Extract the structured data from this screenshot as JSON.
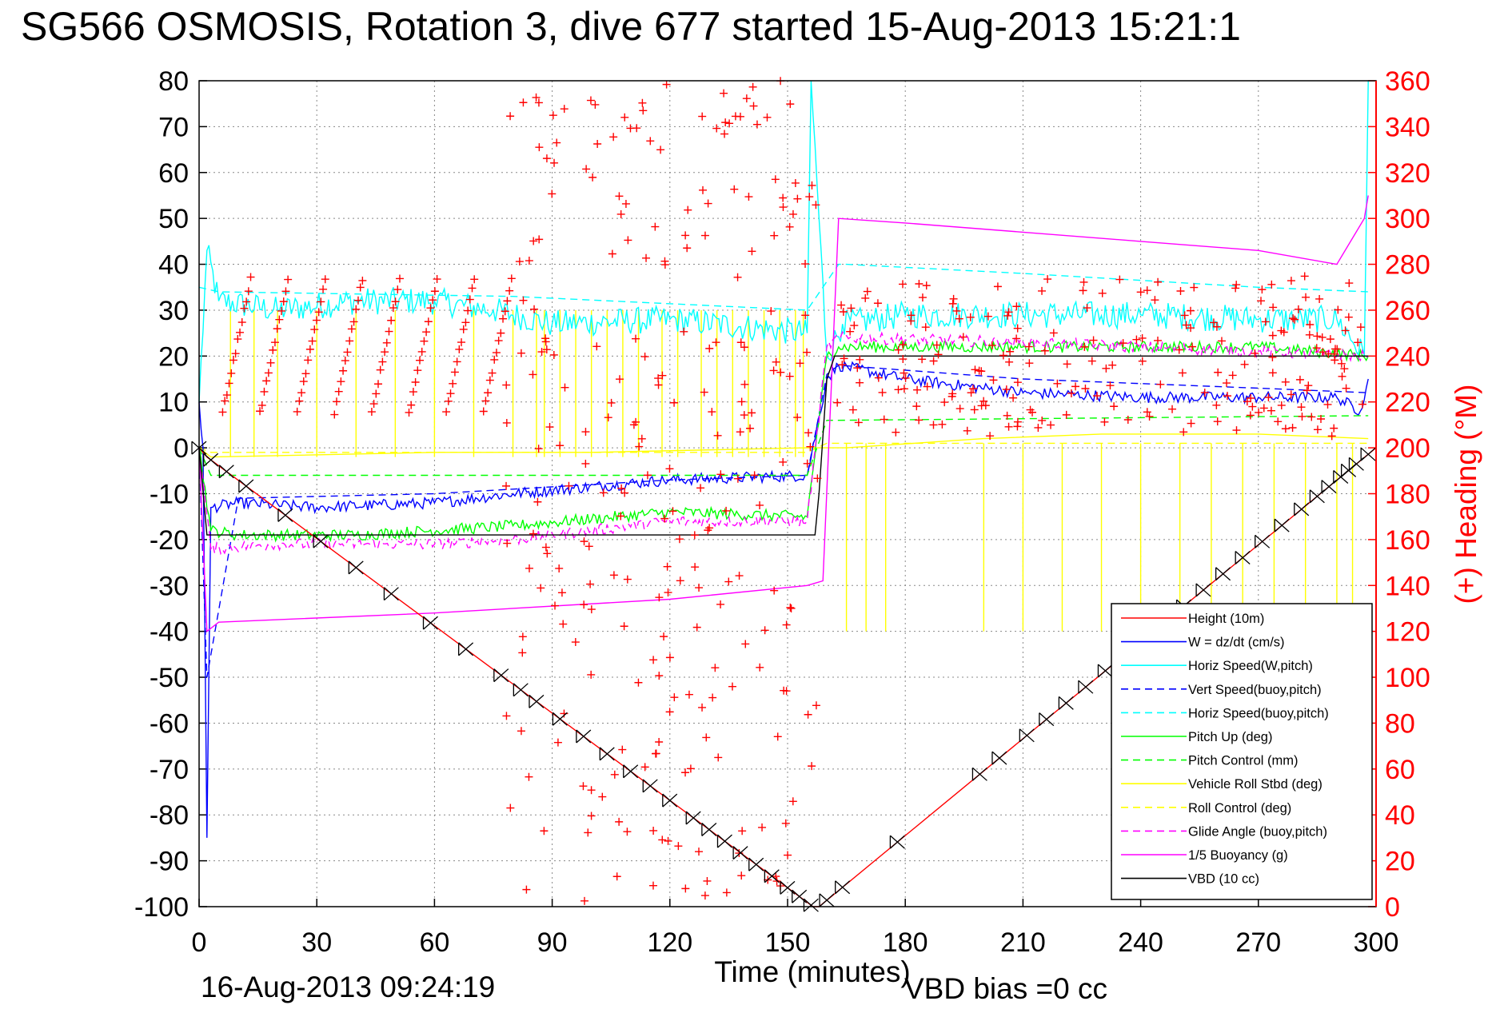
{
  "chart_data": {
    "type": "line",
    "title": "SG566 OSMOSIS, Rotation 3, dive 677 started 15-Aug-2013 15:21:1",
    "xlabel": "Time (minutes)",
    "ylabel": "",
    "y2label": "(+) Heading (°M)",
    "xlim": [
      0,
      300
    ],
    "ylim": [
      -100,
      80
    ],
    "y2lim": [
      0,
      360
    ],
    "grid": true,
    "legend_position": "bottom-right",
    "x_ticks": [
      "0",
      "30",
      "60",
      "90",
      "120",
      "150",
      "180",
      "210",
      "240",
      "270",
      "300"
    ],
    "y_ticks": [
      "80",
      "70",
      "60",
      "50",
      "40",
      "30",
      "20",
      "10",
      "0",
      "-10",
      "-20",
      "-30",
      "-40",
      "-50",
      "-60",
      "-70",
      "-80",
      "-90",
      "-100"
    ],
    "y2_ticks": [
      "360",
      "340",
      "320",
      "300",
      "280",
      "260",
      "240",
      "220",
      "200",
      "180",
      "160",
      "140",
      "120",
      "100",
      "80",
      "60",
      "40",
      "20",
      "0"
    ],
    "footer_date": "16-Aug-2013 09:24:19",
    "vbd_bias": "VBD bias =0 cc",
    "series": [
      {
        "name": "Height (10m)",
        "color": "#ff0000",
        "dash": false,
        "x": [
          0,
          2,
          156.5,
          158,
          300
        ],
        "y": [
          0,
          -2,
          -100,
          -100,
          0
        ]
      },
      {
        "name": "W = dz/dt (cm/s)",
        "color": "#0000ff",
        "dash": false,
        "x": [
          0,
          1,
          2,
          3,
          10,
          30,
          60,
          80,
          120,
          155,
          160,
          163,
          180,
          210,
          240,
          270,
          290,
          296,
          298
        ],
        "y": [
          10,
          0,
          -85,
          -13,
          -12,
          -13,
          -12,
          -10,
          -7,
          -6,
          15,
          18,
          15,
          12,
          11,
          11,
          11,
          8,
          15
        ]
      },
      {
        "name": "Horiz Speed(W,pitch)",
        "color": "#00ffff",
        "dash": false,
        "x": [
          0,
          2,
          5,
          20,
          40,
          60,
          75,
          90,
          120,
          155,
          156,
          160,
          164,
          180,
          210,
          240,
          270,
          290,
          297,
          298
        ],
        "y": [
          10,
          43,
          32,
          30,
          32,
          32,
          30,
          27,
          28,
          25,
          80,
          20,
          27,
          29,
          29,
          29,
          28,
          28,
          20,
          80
        ]
      },
      {
        "name": "Vert Speed(buoy,pitch)",
        "color": "#0000ff",
        "dash": true,
        "x": [
          0,
          2,
          10,
          60,
          80,
          120,
          155,
          160,
          163,
          210,
          270,
          298
        ],
        "y": [
          0,
          -50,
          -11,
          -10,
          -9,
          -7,
          -6,
          16,
          18,
          15,
          13,
          12
        ]
      },
      {
        "name": "Horiz Speed(buoy,pitch)",
        "color": "#00ffff",
        "dash": true,
        "x": [
          0,
          5,
          80,
          155,
          163,
          165,
          210,
          270,
          298
        ],
        "y": [
          35,
          34,
          33,
          30,
          40,
          40,
          38,
          35,
          34
        ]
      },
      {
        "name": "Pitch Up (deg)",
        "color": "#00ff00",
        "dash": false,
        "x": [
          0,
          3,
          10,
          40,
          80,
          120,
          155,
          160,
          163,
          210,
          270,
          298
        ],
        "y": [
          0,
          -18,
          -19,
          -19,
          -17,
          -14,
          -15,
          20,
          22,
          22,
          22,
          20
        ]
      },
      {
        "name": "Pitch Control (mm)",
        "color": "#00ff00",
        "dash": true,
        "x": [
          0,
          3,
          155,
          160,
          163,
          298
        ],
        "y": [
          0,
          -6,
          -6,
          6,
          6,
          7
        ]
      },
      {
        "name": "Vehicle Roll Stbd (deg)",
        "color": "#ffff00",
        "dash": false,
        "x": [
          0,
          3,
          60,
          100,
          155,
          160,
          165,
          200,
          230,
          270,
          298
        ],
        "y": [
          0,
          -2,
          -1,
          -1,
          0,
          0,
          0,
          2,
          3,
          3,
          2
        ]
      },
      {
        "name": "Roll Control (deg)",
        "color": "#ffff00",
        "dash": true,
        "x": [
          0,
          3,
          155,
          160,
          163,
          298
        ],
        "y": [
          0,
          -1,
          -1,
          1,
          1,
          1
        ]
      },
      {
        "name": "Glide Angle (buoy,pitch)",
        "color": "#ff00ff",
        "dash": true,
        "x": [
          0,
          3,
          20,
          60,
          80,
          120,
          155,
          160,
          163,
          210,
          270,
          298
        ],
        "y": [
          0,
          -22,
          -21,
          -21,
          -20,
          -16,
          -16,
          22,
          24,
          23,
          21,
          20
        ]
      },
      {
        "name": "1/5 Buoyancy (g)",
        "color": "#ff00ff",
        "dash": false,
        "x": [
          0,
          2,
          5,
          60,
          120,
          155,
          159,
          163,
          180,
          210,
          240,
          270,
          290,
          297,
          298
        ],
        "y": [
          0,
          -40,
          -38,
          -36,
          -33,
          -30,
          -29,
          50,
          49,
          47,
          45,
          43,
          40,
          50,
          55
        ]
      },
      {
        "name": "VBD (10 cc)",
        "color": "#000000",
        "dash": false,
        "x": [
          0,
          2,
          157,
          158,
          160,
          162,
          298
        ],
        "y": [
          0,
          -19,
          -19,
          -10,
          15,
          20,
          20
        ]
      }
    ],
    "heading_marker_color": "#ff0000",
    "heading_marker_symbol": "+"
  }
}
